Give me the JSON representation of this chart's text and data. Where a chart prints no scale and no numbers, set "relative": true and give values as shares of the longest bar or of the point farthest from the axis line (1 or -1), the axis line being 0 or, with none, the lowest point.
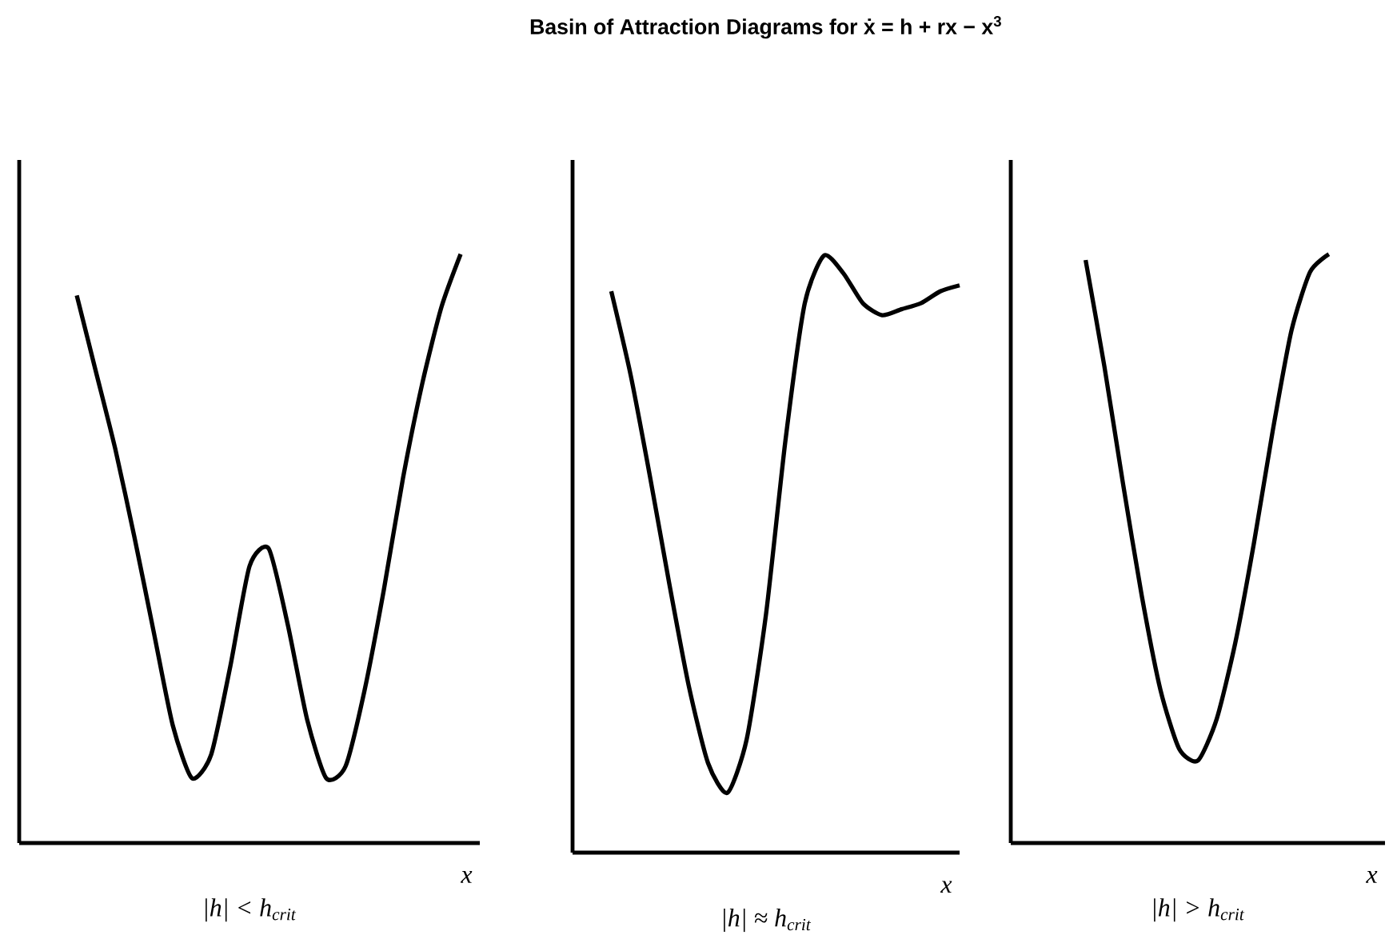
{
  "chart_data": [
    {
      "type": "line",
      "xlabel": "x",
      "relative": true,
      "color": "#000000",
      "annotations": [
        "|h| < h$_{crit}$"
      ],
      "categories": [
        null,
        null,
        null,
        null,
        null,
        null,
        null,
        null,
        null,
        null,
        null,
        null,
        null,
        null,
        null,
        null,
        null,
        null,
        null,
        null,
        null,
        null,
        null,
        null,
        null
      ],
      "values": [
        null,
        null,
        null,
        0.93,
        0.8,
        0.67,
        0.52,
        0.36,
        0.2,
        0.11,
        0.15,
        0.3,
        0.47,
        0.5,
        0.37,
        0.21,
        0.11,
        0.13,
        0.26,
        0.43,
        0.62,
        0.78,
        0.91,
        1.0,
        null
      ]
    },
    {
      "type": "line",
      "title": "Basin of Attraction Diagrams for ẋ = h + rx − x$^{3}$",
      "xlabel": "x",
      "relative": true,
      "color": "#000000",
      "annotations": [
        "|h| ≈ h$_{crit}$"
      ],
      "categories": [
        null,
        null,
        null,
        null,
        null,
        null,
        null,
        null,
        null,
        null,
        null,
        null,
        null,
        null,
        null,
        null,
        null,
        null,
        null,
        null,
        null
      ],
      "values": [
        null,
        null,
        0.94,
        0.8,
        0.63,
        0.45,
        0.28,
        0.15,
        0.1,
        0.19,
        0.4,
        0.69,
        0.92,
        1.0,
        0.97,
        0.92,
        0.9,
        0.91,
        0.92,
        0.94,
        0.95
      ]
    },
    {
      "type": "line",
      "xlabel": "x",
      "relative": true,
      "color": "#000000",
      "annotations": [
        "|h| > h$_{crit}$"
      ],
      "categories": [
        null,
        null,
        null,
        null,
        null,
        null,
        null,
        null,
        null,
        null,
        null,
        null,
        null,
        null,
        null,
        null,
        null,
        null,
        null,
        null,
        null
      ],
      "values": [
        null,
        null,
        null,
        null,
        0.99,
        0.81,
        0.61,
        0.42,
        0.26,
        0.16,
        0.14,
        0.21,
        0.34,
        0.51,
        0.7,
        0.87,
        0.97,
        1.0,
        null,
        null,
        null
      ]
    }
  ]
}
